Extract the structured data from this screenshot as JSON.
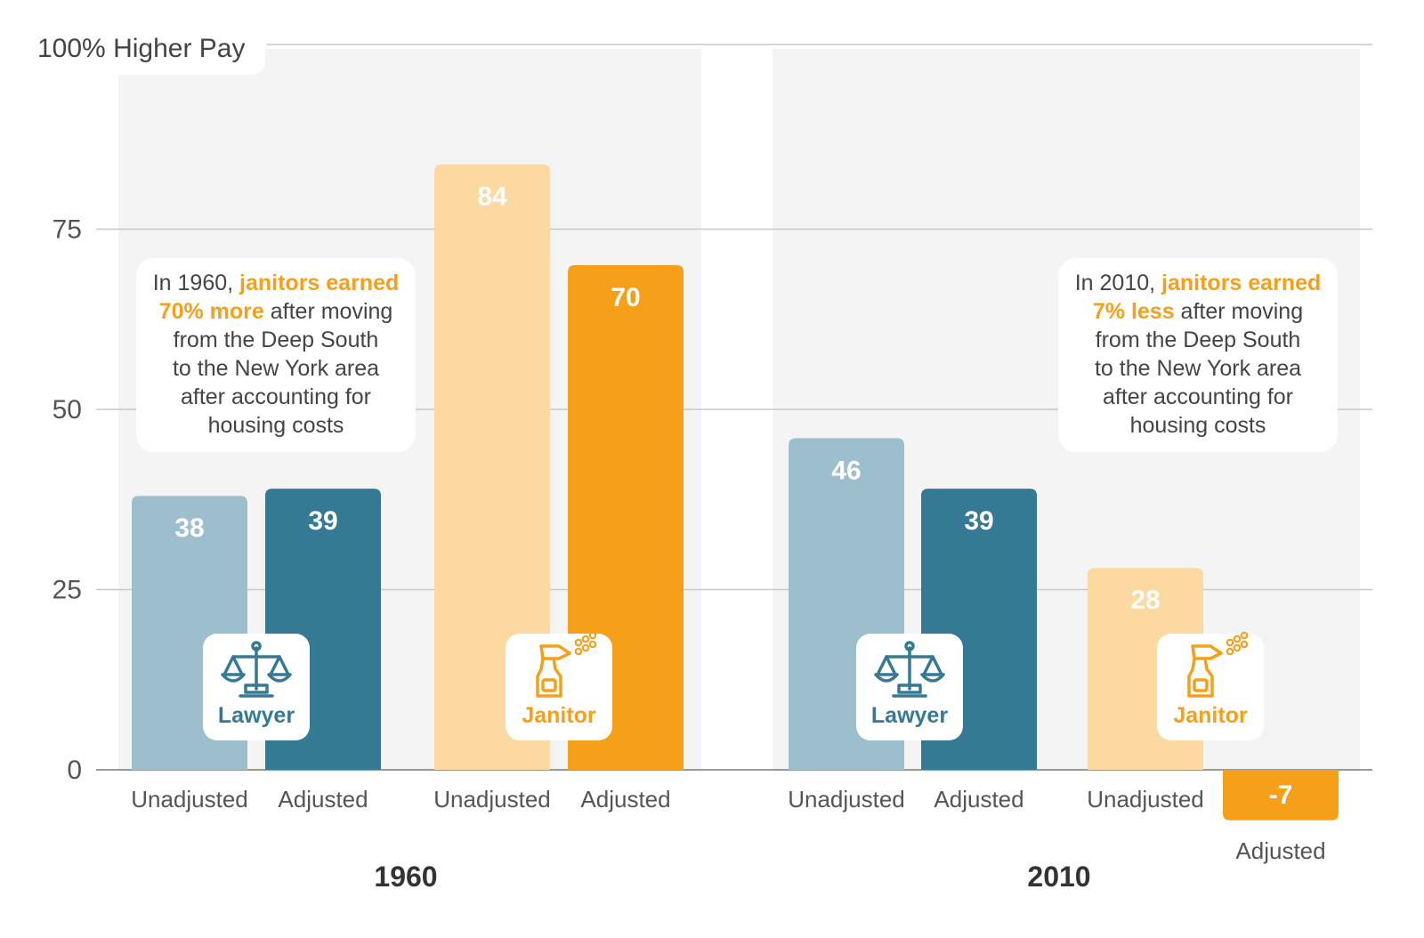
{
  "chart_data": {
    "type": "bar",
    "ylabel": "100% Higher Pay",
    "ylim": [
      0,
      100
    ],
    "yticks": [
      "0",
      "25",
      "50",
      "75"
    ],
    "grid": true,
    "groups": [
      {
        "year": "1960",
        "note": {
          "lines": [
            [
              {
                "text": "In 1960, "
              },
              {
                "text": "janitors earned",
                "highlight": true
              }
            ],
            [
              {
                "text": "70% more",
                "highlight": true
              },
              {
                "text": " after moving"
              }
            ],
            [
              {
                "text": "from the Deep South"
              }
            ],
            [
              {
                "text": "to the New York area"
              }
            ],
            [
              {
                "text": "after accounting for"
              }
            ],
            [
              {
                "text": "housing costs"
              }
            ]
          ]
        },
        "occupations": [
          {
            "name": "Lawyer",
            "icon": "scales-icon",
            "bars": [
              {
                "category": "Unadjusted",
                "value": 38,
                "label": "38",
                "color": "#9dbecc"
              },
              {
                "category": "Adjusted",
                "value": 39,
                "label": "39",
                "color": "#357a94"
              }
            ]
          },
          {
            "name": "Janitor",
            "icon": "spray-bottle-icon",
            "bars": [
              {
                "category": "Unadjusted",
                "value": 84,
                "label": "84",
                "color": "#fdd9a2"
              },
              {
                "category": "Adjusted",
                "value": 70,
                "label": "70",
                "color": "#f6a01a"
              }
            ]
          }
        ]
      },
      {
        "year": "2010",
        "note": {
          "lines": [
            [
              {
                "text": "In 2010, "
              },
              {
                "text": "janitors earned",
                "highlight": true
              }
            ],
            [
              {
                "text": "7% less",
                "highlight": true
              },
              {
                "text": " after moving"
              }
            ],
            [
              {
                "text": "from the Deep South"
              }
            ],
            [
              {
                "text": "to the New York area"
              }
            ],
            [
              {
                "text": "after accounting for"
              }
            ],
            [
              {
                "text": "housing costs"
              }
            ]
          ]
        },
        "occupations": [
          {
            "name": "Lawyer",
            "icon": "scales-icon",
            "bars": [
              {
                "category": "Unadjusted",
                "value": 46,
                "label": "46",
                "color": "#9dbecc"
              },
              {
                "category": "Adjusted",
                "value": 39,
                "label": "39",
                "color": "#357a94"
              }
            ]
          },
          {
            "name": "Janitor",
            "icon": "spray-bottle-icon",
            "bars": [
              {
                "category": "Unadjusted",
                "value": 28,
                "label": "28",
                "color": "#fdd9a2"
              },
              {
                "category": "Adjusted",
                "value": -7,
                "label": "-7",
                "color": "#f6a01a"
              }
            ]
          }
        ]
      }
    ]
  },
  "colors": {
    "panel_bg": "#f4f4f4",
    "grid": "#c8c8c8",
    "lawyer_accent": "#357a94",
    "janitor_accent": "#f6a01a"
  }
}
